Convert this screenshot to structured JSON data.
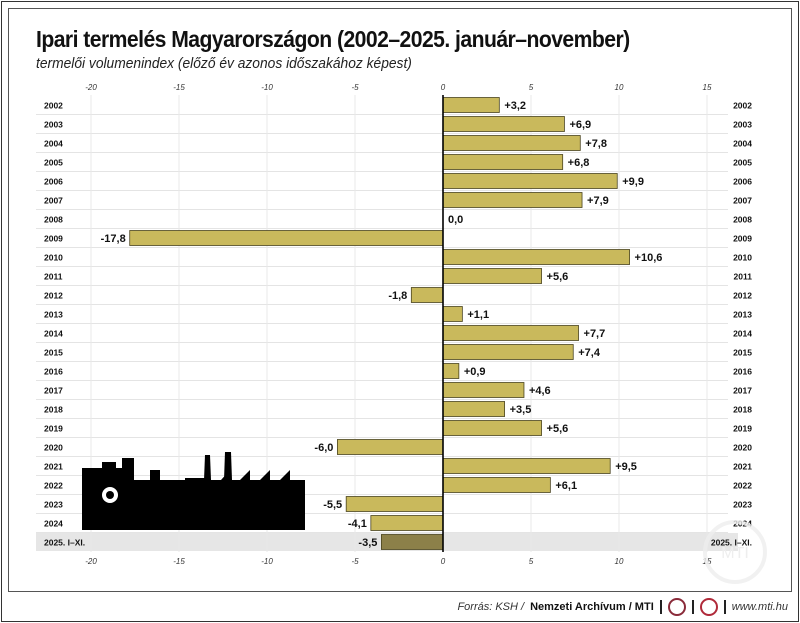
{
  "chart_data": {
    "type": "bar",
    "orientation": "horizontal",
    "title": "Ipari termelés Magyarországon (2002–2025. január–november)",
    "subtitle": "termelői volumenindex (előző év azonos időszakához képest)",
    "categories": [
      "2002",
      "2003",
      "2004",
      "2005",
      "2006",
      "2007",
      "2008",
      "2009",
      "2010",
      "2011",
      "2012",
      "2013",
      "2014",
      "2015",
      "2016",
      "2017",
      "2018",
      "2019",
      "2020",
      "2021",
      "2022",
      "2023",
      "2024",
      "2025. I–XI."
    ],
    "values": [
      3.2,
      6.9,
      7.8,
      6.8,
      9.9,
      7.9,
      0.0,
      -17.8,
      10.6,
      5.6,
      -1.8,
      1.1,
      7.7,
      7.4,
      0.9,
      4.6,
      3.5,
      5.6,
      -6.0,
      9.5,
      6.1,
      -5.5,
      -4.1,
      -3.5
    ],
    "labels": [
      "+3,2",
      "+6,9",
      "+7,8",
      "+6,8",
      "+9,9",
      "+7,9",
      "0,0",
      "-17,8",
      "+10,6",
      "+5,6",
      "-1,8",
      "+1,1",
      "+7,7",
      "+7,4",
      "+0,9",
      "+4,6",
      "+3,5",
      "+5,6",
      "-6,0",
      "+9,5",
      "+6,1",
      "-5,5",
      "-4,1",
      "-3,5"
    ],
    "xlim": [
      -20,
      15
    ],
    "ticks": [
      -20,
      -15,
      -10,
      -5,
      0,
      5,
      10,
      15
    ],
    "grid": true,
    "colors": {
      "bar": "#c9b95c",
      "bar_highlight": "#8c8049",
      "bar_border": "#4a4420",
      "highlight_row": "#e6e6e6"
    }
  },
  "footer": {
    "source_prefix": "Forrás: KSH /",
    "source_bold": "Nemzeti Archívum / MTI",
    "website": "www.mti.hu"
  },
  "watermark": "MTI"
}
